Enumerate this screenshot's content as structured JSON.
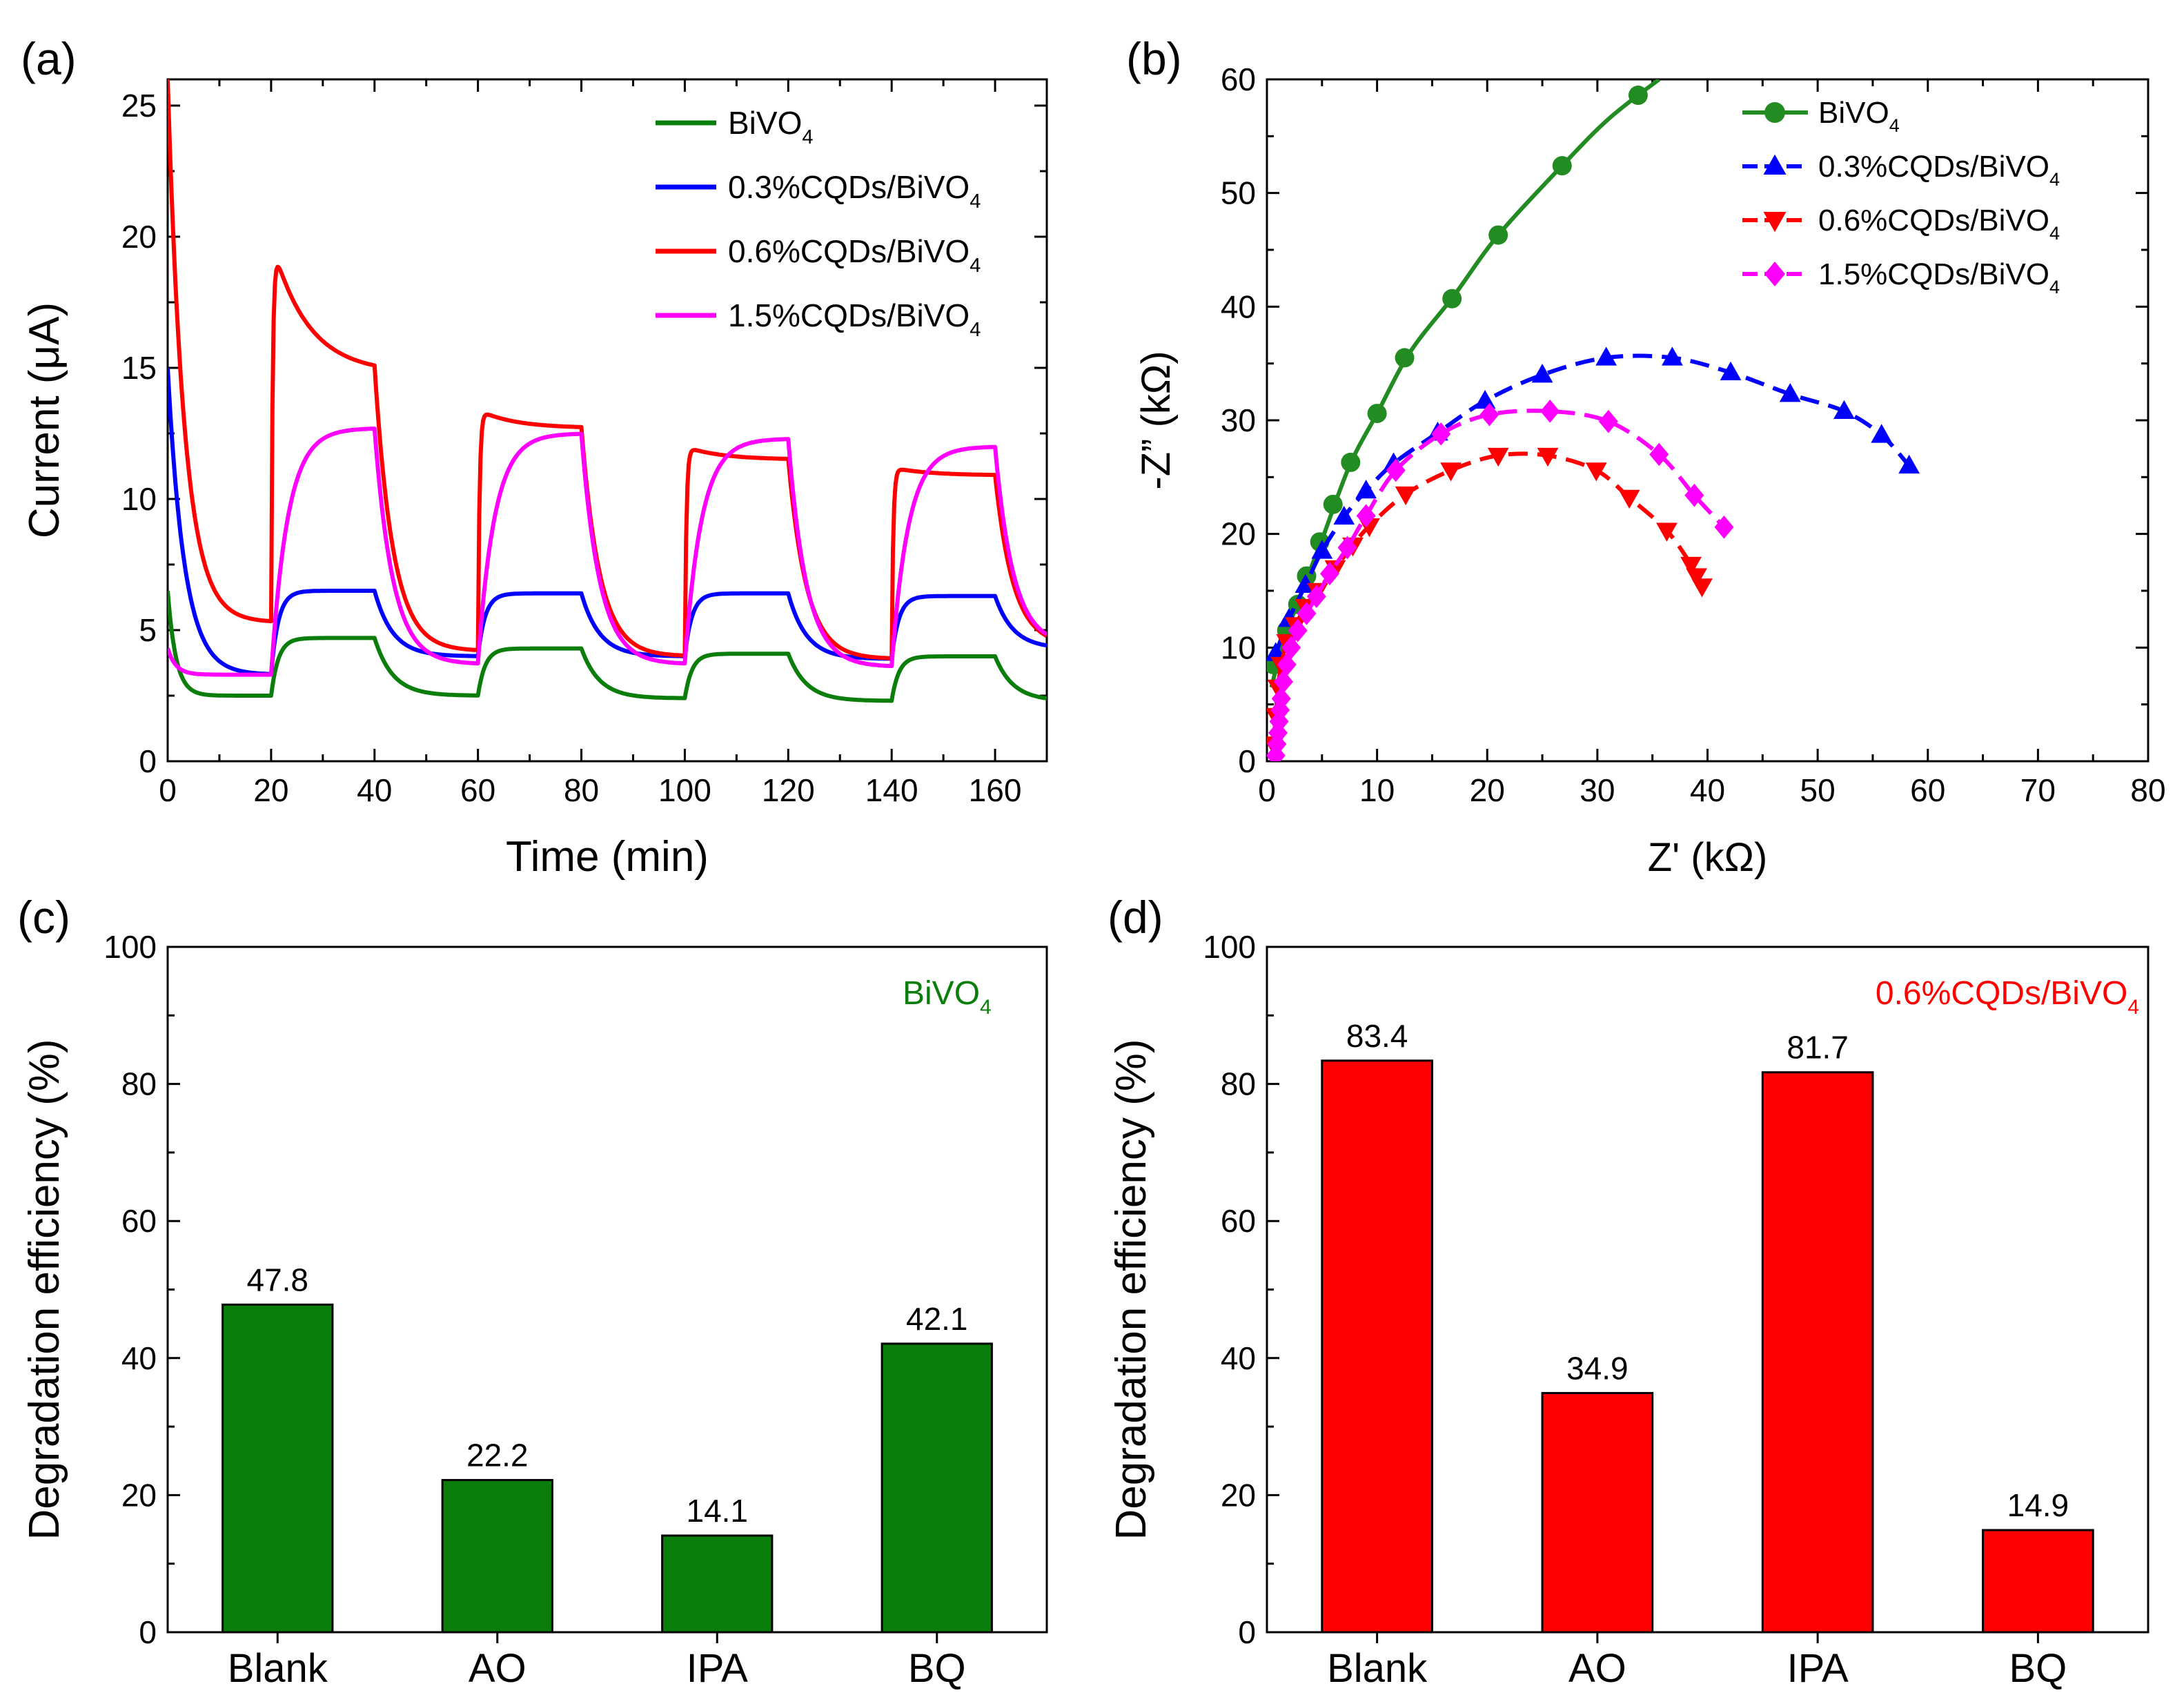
{
  "chart_data": [
    {
      "panel": "(a)",
      "type": "line",
      "xlabel": "Time (min)",
      "ylabel": "Current (μA)",
      "xlim": [
        0,
        170
      ],
      "ylim": [
        0,
        26
      ],
      "xticks": [
        0,
        20,
        40,
        60,
        80,
        100,
        120,
        140,
        160
      ],
      "yticks": [
        0,
        5,
        10,
        15,
        20,
        25
      ],
      "legend_position": "top-right",
      "light_on_intervals": [
        [
          20,
          40
        ],
        [
          60,
          80
        ],
        [
          100,
          120
        ],
        [
          140,
          160
        ]
      ],
      "series": [
        {
          "name": "BiVO",
          "sub": "4",
          "color": "#0a7d0a",
          "start": 6.5,
          "dark_min": 2.5,
          "on": [
            4.7,
            4.3,
            4.1,
            4.0
          ],
          "off": [
            2.5,
            2.4,
            2.3,
            2.3
          ]
        },
        {
          "name": "0.3%CQDs/BiVO",
          "sub": "4",
          "color": "#0000ff",
          "start": 15.0,
          "dark_min": 3.3,
          "on": [
            6.5,
            6.4,
            6.4,
            6.3
          ],
          "off": [
            4.0,
            4.0,
            3.9,
            4.3
          ]
        },
        {
          "name": "0.6%CQDs/BiVO",
          "sub": "4",
          "color": "#ff0000",
          "start": 26.0,
          "dark_min": 5.3,
          "on": [
            19.9,
            13.4,
            12.0,
            11.2
          ],
          "on_end": [
            14.8,
            12.7,
            11.5,
            10.9
          ],
          "off": [
            4.2,
            4.0,
            3.9,
            4.4
          ]
        },
        {
          "name": "1.5%CQDs/BiVO",
          "sub": "4",
          "color": "#ff00ff",
          "start": 4.3,
          "dark_min": 3.3,
          "on": [
            12.7,
            12.5,
            12.3,
            12.0
          ],
          "off": [
            3.7,
            3.7,
            3.6,
            4.4
          ]
        }
      ]
    },
    {
      "panel": "(b)",
      "type": "scatter",
      "xlabel": "Z' (kΩ)",
      "ylabel": "-Z” (kΩ)",
      "xlim": [
        0,
        80
      ],
      "ylim": [
        0,
        60
      ],
      "xticks": [
        0,
        10,
        20,
        30,
        40,
        50,
        60,
        70,
        80
      ],
      "yticks": [
        0,
        10,
        20,
        30,
        40,
        50,
        60
      ],
      "legend_position": "top-right",
      "series": [
        {
          "name": "BiVO",
          "sub": "4",
          "color": "#228b22",
          "marker": "circle",
          "dashed": false,
          "points": [
            [
              0.6,
              8.5
            ],
            [
              1.8,
              11.5
            ],
            [
              2.8,
              13.8
            ],
            [
              3.6,
              16.3
            ],
            [
              4.8,
              19.3
            ],
            [
              6.0,
              22.6
            ],
            [
              7.6,
              26.3
            ],
            [
              10.0,
              30.6
            ],
            [
              12.5,
              35.5
            ],
            [
              16.8,
              40.7
            ],
            [
              21.0,
              46.3
            ],
            [
              26.8,
              52.4
            ],
            [
              33.7,
              58.6
            ]
          ],
          "line": [
            [
              0.4,
              6.5
            ],
            [
              1.5,
              10.5
            ],
            [
              3.0,
              14.5
            ],
            [
              5.0,
              19.5
            ],
            [
              7.5,
              26.0
            ],
            [
              10.0,
              30.6
            ],
            [
              13.0,
              36.0
            ],
            [
              17.0,
              41.0
            ],
            [
              21.0,
              46.3
            ],
            [
              26.8,
              52.4
            ],
            [
              31.0,
              56.5
            ],
            [
              35.6,
              60.0
            ]
          ]
        },
        {
          "name": "0.3%CQDs/BiVO",
          "sub": "4",
          "color": "#0000ff",
          "marker": "triangle-up",
          "dashed": true,
          "points": [
            [
              0.8,
              9.5
            ],
            [
              2.0,
              12.5
            ],
            [
              3.5,
              15.5
            ],
            [
              5.0,
              18.5
            ],
            [
              7.0,
              21.5
            ],
            [
              9.0,
              23.8
            ],
            [
              11.5,
              26.2
            ],
            [
              15.5,
              28.9
            ],
            [
              19.8,
              31.7
            ],
            [
              25.0,
              34.0
            ],
            [
              30.8,
              35.5
            ],
            [
              36.8,
              35.5
            ],
            [
              42.1,
              34.2
            ],
            [
              47.5,
              32.3
            ],
            [
              52.4,
              30.8
            ],
            [
              55.8,
              28.7
            ],
            [
              58.3,
              26.0
            ]
          ]
        },
        {
          "name": "0.6%CQDs/BiVO",
          "sub": "4",
          "color": "#ff0000",
          "marker": "triangle-down",
          "dashed": true,
          "points": [
            [
              0.6,
              1.5
            ],
            [
              0.8,
              4.0
            ],
            [
              1.0,
              6.5
            ],
            [
              1.3,
              8.5
            ],
            [
              1.8,
              10.5
            ],
            [
              2.6,
              12.0
            ],
            [
              3.5,
              13.6
            ],
            [
              4.6,
              15.0
            ],
            [
              6.2,
              17.0
            ],
            [
              7.8,
              19.0
            ],
            [
              9.3,
              20.7
            ],
            [
              12.6,
              23.5
            ],
            [
              16.7,
              25.6
            ],
            [
              21.0,
              26.9
            ],
            [
              25.5,
              26.9
            ],
            [
              29.9,
              25.6
            ],
            [
              32.9,
              23.2
            ],
            [
              36.3,
              20.3
            ],
            [
              38.5,
              17.3
            ],
            [
              39.0,
              16.3
            ],
            [
              39.5,
              15.4
            ]
          ]
        },
        {
          "name": "1.5%CQDs/BiVO",
          "sub": "4",
          "color": "#ff00ff",
          "marker": "diamond",
          "dashed": true,
          "points": [
            [
              0.8,
              0.5
            ],
            [
              0.9,
              1.5
            ],
            [
              1.0,
              2.5
            ],
            [
              1.1,
              3.5
            ],
            [
              1.2,
              4.5
            ],
            [
              1.3,
              5.5
            ],
            [
              1.5,
              7.0
            ],
            [
              1.8,
              8.5
            ],
            [
              2.2,
              10.0
            ],
            [
              2.8,
              11.5
            ],
            [
              3.6,
              13.0
            ],
            [
              4.5,
              14.5
            ],
            [
              5.7,
              16.5
            ],
            [
              7.3,
              18.8
            ],
            [
              9.0,
              21.6
            ],
            [
              11.7,
              25.6
            ],
            [
              15.8,
              28.8
            ],
            [
              20.2,
              30.5
            ],
            [
              25.7,
              30.8
            ],
            [
              31.0,
              29.9
            ],
            [
              35.6,
              27.0
            ],
            [
              38.8,
              23.4
            ],
            [
              41.5,
              20.6
            ]
          ]
        }
      ]
    },
    {
      "panel": "(c)",
      "type": "bar",
      "categories": [
        "Blank",
        "AO",
        "IPA",
        "BQ"
      ],
      "values": [
        47.8,
        22.2,
        14.1,
        42.1
      ],
      "value_labels": [
        "47.8",
        "22.2",
        "14.1",
        "42.1"
      ],
      "ylabel": "Degradation efficiency (%)",
      "ylim": [
        0,
        100
      ],
      "yticks": [
        0,
        20,
        40,
        60,
        80,
        100
      ],
      "bar_color": "#0a7d0a",
      "annotation": {
        "text": "BiVO",
        "sub": "4",
        "color": "#0a7d0a"
      }
    },
    {
      "panel": "(d)",
      "type": "bar",
      "categories": [
        "Blank",
        "AO",
        "IPA",
        "BQ"
      ],
      "values": [
        83.4,
        34.9,
        81.7,
        14.9
      ],
      "value_labels": [
        "83.4",
        "34.9",
        "81.7",
        "14.9"
      ],
      "ylabel": "Degradation efficiency (%)",
      "ylim": [
        0,
        100
      ],
      "yticks": [
        0,
        20,
        40,
        60,
        80,
        100
      ],
      "bar_color": "#ff0000",
      "annotation": {
        "text": "0.6%CQDs/BiVO",
        "sub": "4",
        "color": "#ff0000"
      }
    }
  ]
}
